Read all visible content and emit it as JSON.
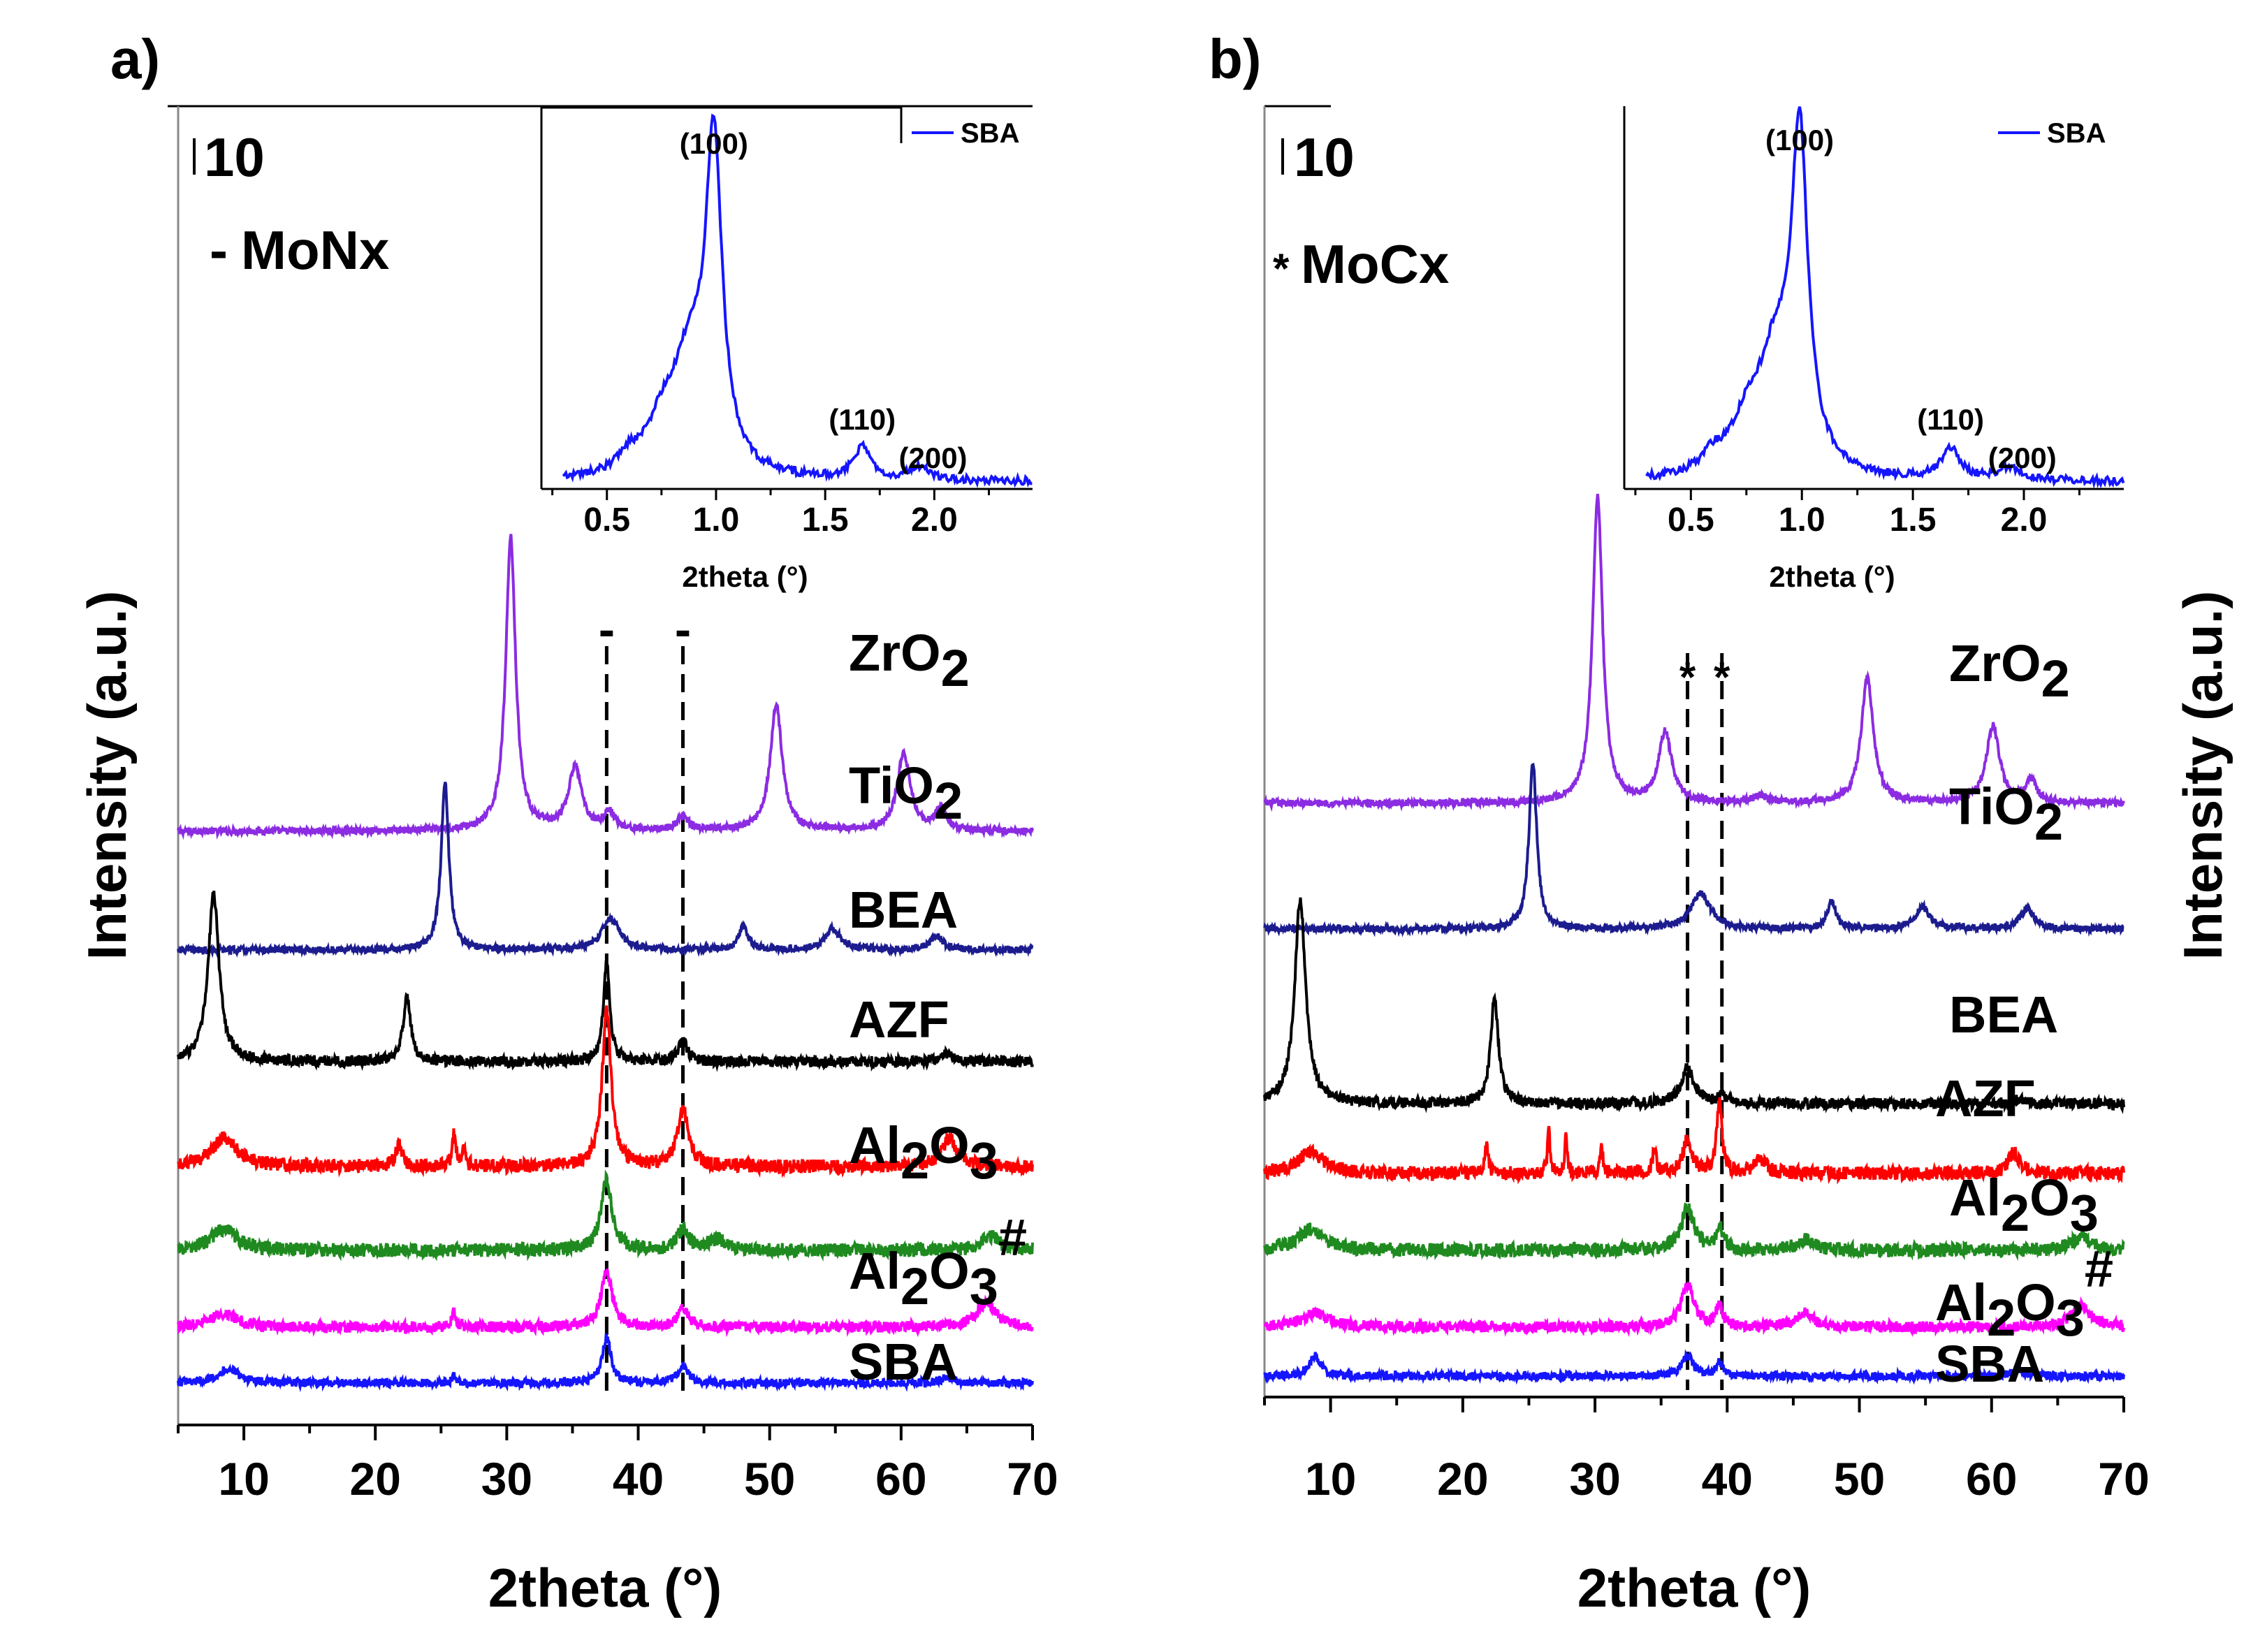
{
  "chart_data": [
    {
      "type": "line",
      "panel_label": "a)",
      "xlabel": "2theta (°)",
      "ylabel": "Intensity (a.u.)",
      "xlim": [
        5,
        70
      ],
      "xticks": [
        10,
        20,
        30,
        40,
        50,
        60,
        70
      ],
      "scale_bar_label": "10",
      "legend_marker": "-",
      "legend_text": "MoNx",
      "reference_lines": [
        37.6,
        43.4
      ],
      "reference_marker": "-",
      "series": [
        {
          "name": "ZrO2",
          "label_base": "ZrO",
          "label_sub": "2",
          "label_sup": "",
          "color": "#8B2BE2",
          "offset": 8.1,
          "noise": 0.05,
          "peaks": [
            [
              30.3,
              4.2,
              0.45
            ],
            [
              35.2,
              0.9,
              0.6
            ],
            [
              37.8,
              0.25,
              0.5
            ],
            [
              43.4,
              0.2,
              0.5
            ],
            [
              50.5,
              1.8,
              0.55
            ],
            [
              60.2,
              1.1,
              0.6
            ],
            [
              63.0,
              0.3,
              0.5
            ]
          ]
        },
        {
          "name": "TiO2",
          "label_base": "TiO",
          "label_sub": "2",
          "label_sup": "",
          "color": "#1C1C8F",
          "offset": 6.4,
          "noise": 0.05,
          "peaks": [
            [
              25.3,
              2.4,
              0.35
            ],
            [
              37.9,
              0.45,
              0.8
            ],
            [
              48.0,
              0.35,
              0.4
            ],
            [
              54.8,
              0.3,
              0.7
            ],
            [
              62.7,
              0.2,
              0.6
            ]
          ]
        },
        {
          "name": "BEA",
          "label_base": "BEA",
          "label_sub": "",
          "label_sup": "",
          "color": "#000000",
          "offset": 4.8,
          "noise": 0.08,
          "peaks": [
            [
              7.7,
              2.4,
              0.5
            ],
            [
              22.4,
              0.9,
              0.35
            ],
            [
              37.6,
              1.4,
              0.3
            ],
            [
              43.4,
              0.3,
              0.4
            ],
            [
              63.5,
              0.1,
              0.6
            ]
          ]
        },
        {
          "name": "AZF",
          "label_base": "AZF",
          "label_sub": "",
          "label_sup": "",
          "color": "#FF0000",
          "offset": 3.3,
          "noise": 0.1,
          "peaks": [
            [
              8.5,
              0.4,
              1.2
            ],
            [
              21.8,
              0.3,
              0.3
            ],
            [
              26.0,
              0.5,
              0.15
            ],
            [
              26.7,
              0.3,
              0.15
            ],
            [
              37.6,
              2.3,
              0.4
            ],
            [
              43.4,
              0.8,
              0.5
            ],
            [
              63.7,
              0.4,
              0.7
            ]
          ]
        },
        {
          "name": "Al2O3",
          "label_base": "Al",
          "label_sub": "2",
          "label_mid": "O",
          "label_sub2": "3",
          "label_sup": "",
          "color": "#1F8A1F",
          "offset": 2.1,
          "noise": 0.1,
          "peaks": [
            [
              8.5,
              0.3,
              1.2
            ],
            [
              37.6,
              1.0,
              0.5
            ],
            [
              43.4,
              0.3,
              0.5
            ],
            [
              46.0,
              0.15,
              0.8
            ],
            [
              66.8,
              0.2,
              0.8
            ]
          ]
        },
        {
          "name": "Al2O3#",
          "label_base": "Al",
          "label_sub": "2",
          "label_mid": "O",
          "label_sub2": "3",
          "label_sup": "#",
          "color": "#FF00FF",
          "offset": 1.0,
          "noise": 0.08,
          "peaks": [
            [
              8.5,
              0.2,
              1.2
            ],
            [
              26.0,
              0.2,
              0.2
            ],
            [
              37.6,
              0.8,
              0.5
            ],
            [
              43.4,
              0.25,
              0.5
            ],
            [
              66.5,
              0.35,
              0.9
            ]
          ]
        },
        {
          "name": "SBA",
          "label_base": "SBA",
          "label_sub": "",
          "label_sup": "",
          "color": "#1515FF",
          "offset": 0.2,
          "noise": 0.06,
          "peaks": [
            [
              8.8,
              0.2,
              1.0
            ],
            [
              26.0,
              0.1,
              0.2
            ],
            [
              37.6,
              0.65,
              0.4
            ],
            [
              43.4,
              0.25,
              0.5
            ],
            [
              63.5,
              0.08,
              0.6
            ]
          ]
        }
      ],
      "inset": {
        "xlabel": "2theta (°)",
        "xlim": [
          0.2,
          2.45
        ],
        "xticks": [
          0.5,
          1.0,
          1.5,
          2.0
        ],
        "legend": "SBA",
        "color": "#1515FF",
        "annotations": [
          {
            "x": 0.99,
            "label": "(100)"
          },
          {
            "x": 1.67,
            "label": "(110)"
          },
          {
            "x": 1.93,
            "label": "(200)"
          }
        ],
        "peaks": [
          [
            0.99,
            1.0,
            0.045
          ],
          [
            0.88,
            0.35,
            0.1
          ],
          [
            0.75,
            0.12,
            0.08
          ],
          [
            0.6,
            0.05,
            0.06
          ],
          [
            1.67,
            0.1,
            0.05
          ],
          [
            1.93,
            0.04,
            0.06
          ]
        ]
      }
    },
    {
      "type": "line",
      "panel_label": "b)",
      "xlabel": "2theta (°)",
      "ylabel": "Intensity (a.u.)",
      "xlim": [
        5,
        70
      ],
      "xticks": [
        10,
        20,
        30,
        40,
        50,
        60,
        70
      ],
      "scale_bar_label": "10",
      "legend_marker": "*",
      "legend_text": "MoCx",
      "reference_lines": [
        37.0,
        39.6
      ],
      "reference_marker": "*",
      "series": [
        {
          "name": "ZrO2",
          "label_base": "ZrO",
          "label_sub": "2",
          "label_sup": "",
          "color": "#8B2BE2",
          "offset": 8.4,
          "noise": 0.05,
          "peaks": [
            [
              30.2,
              4.4,
              0.45
            ],
            [
              35.3,
              1.0,
              0.6
            ],
            [
              50.6,
              1.8,
              0.55
            ],
            [
              60.1,
              1.1,
              0.6
            ],
            [
              63.0,
              0.3,
              0.5
            ],
            [
              42.5,
              0.1,
              0.6
            ]
          ]
        },
        {
          "name": "TiO2",
          "label_base": "TiO",
          "label_sub": "2",
          "label_sup": "",
          "color": "#1C1C8F",
          "offset": 6.6,
          "noise": 0.05,
          "peaks": [
            [
              25.3,
              2.4,
              0.35
            ],
            [
              38.0,
              0.5,
              0.9
            ],
            [
              47.9,
              0.4,
              0.4
            ],
            [
              54.8,
              0.3,
              0.7
            ],
            [
              62.7,
              0.3,
              0.6
            ]
          ]
        },
        {
          "name": "BEA",
          "label_base": "BEA",
          "label_sub": "",
          "label_sup": "",
          "color": "#000000",
          "offset": 4.1,
          "noise": 0.08,
          "peaks": [
            [
              7.7,
              2.9,
              0.5
            ],
            [
              22.4,
              1.5,
              0.35
            ],
            [
              37.0,
              0.5,
              0.6
            ],
            [
              39.6,
              0.1,
              0.4
            ],
            [
              62.0,
              0.05,
              0.6
            ]
          ]
        },
        {
          "name": "AZF",
          "label_base": "AZF",
          "label_sub": "",
          "label_sup": "",
          "color": "#FF0000",
          "offset": 3.1,
          "noise": 0.1,
          "peaks": [
            [
              8.5,
              0.3,
              1.2
            ],
            [
              21.8,
              0.4,
              0.15
            ],
            [
              26.5,
              0.6,
              0.12
            ],
            [
              27.8,
              0.5,
              0.12
            ],
            [
              30.5,
              0.4,
              0.12
            ],
            [
              34.5,
              0.3,
              0.2
            ],
            [
              37.0,
              0.5,
              0.4
            ],
            [
              39.4,
              1.0,
              0.25
            ],
            [
              42.5,
              0.2,
              0.5
            ],
            [
              61.7,
              0.3,
              0.5
            ]
          ]
        },
        {
          "name": "Al2O3",
          "label_base": "Al",
          "label_sub": "2",
          "label_mid": "O",
          "label_sub2": "3",
          "label_sup": "",
          "color": "#1F8A1F",
          "offset": 2.0,
          "noise": 0.1,
          "peaks": [
            [
              8.5,
              0.3,
              1.2
            ],
            [
              37.0,
              0.6,
              0.6
            ],
            [
              39.5,
              0.3,
              0.3
            ],
            [
              46.0,
              0.15,
              0.8
            ],
            [
              66.8,
              0.2,
              0.8
            ]
          ]
        },
        {
          "name": "Al2O3#",
          "label_base": "Al",
          "label_sub": "2",
          "label_mid": "O",
          "label_sub2": "3",
          "label_sup": "#",
          "color": "#FF00FF",
          "offset": 0.9,
          "noise": 0.08,
          "peaks": [
            [
              8.8,
              0.2,
              1.2
            ],
            [
              37.0,
              0.6,
              0.6
            ],
            [
              39.4,
              0.3,
              0.3
            ],
            [
              45.8,
              0.2,
              0.8
            ],
            [
              66.8,
              0.3,
              0.9
            ]
          ]
        },
        {
          "name": "SBA",
          "label_base": "SBA",
          "label_sub": "",
          "label_sup": "",
          "color": "#1515FF",
          "offset": 0.2,
          "noise": 0.06,
          "peaks": [
            [
              8.8,
              0.3,
              0.5
            ],
            [
              37.0,
              0.3,
              0.5
            ],
            [
              39.4,
              0.2,
              0.3
            ],
            [
              62.0,
              0.1,
              0.6
            ]
          ]
        }
      ],
      "inset": {
        "xlabel": "2theta (°)",
        "xlim": [
          0.2,
          2.45
        ],
        "xticks": [
          0.5,
          1.0,
          1.5,
          2.0
        ],
        "legend": "SBA",
        "color": "#1515FF",
        "annotations": [
          {
            "x": 0.99,
            "label": "(100)"
          },
          {
            "x": 1.67,
            "label": "(110)"
          },
          {
            "x": 1.93,
            "label": "(200)"
          }
        ],
        "peaks": [
          [
            0.99,
            1.0,
            0.045
          ],
          [
            0.88,
            0.35,
            0.1
          ],
          [
            0.75,
            0.12,
            0.08
          ],
          [
            0.6,
            0.05,
            0.06
          ],
          [
            1.67,
            0.1,
            0.05
          ],
          [
            1.93,
            0.04,
            0.06
          ]
        ]
      }
    }
  ]
}
